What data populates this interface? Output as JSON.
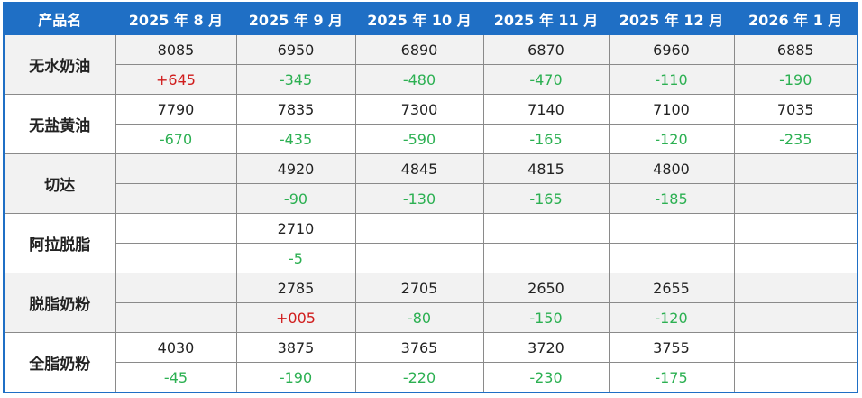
{
  "header": [
    "产品名",
    "2025 年 8 月",
    "2025 年 9 月",
    "2025 年 10 月",
    "2025 年 11 月",
    "2025 年 12 月",
    "2026 年 1 月"
  ],
  "rows": [
    {
      "name": "无水奶油",
      "prices": [
        "8085",
        "6950",
        "6890",
        "6870",
        "6960",
        "6885"
      ],
      "changes": [
        "+645",
        "-345",
        "-480",
        "-470",
        "-110",
        "-190"
      ]
    },
    {
      "name": "无盐黄油",
      "prices": [
        "7790",
        "7835",
        "7300",
        "7140",
        "7100",
        "7035"
      ],
      "changes": [
        "-670",
        "-435",
        "-590",
        "-165",
        "-120",
        "-235"
      ]
    },
    {
      "name": "切达",
      "prices": [
        null,
        "4920",
        "4845",
        "4815",
        "4800",
        null
      ],
      "changes": [
        null,
        "-90",
        "-130",
        "-165",
        "-185",
        null
      ]
    },
    {
      "name": "阿拉脱脂",
      "prices": [
        null,
        "2710",
        null,
        null,
        null,
        null
      ],
      "changes": [
        null,
        "-5",
        null,
        null,
        null,
        null
      ]
    },
    {
      "name": "脱脂奶粉",
      "prices": [
        null,
        "2785",
        "2705",
        "2650",
        "2655",
        null
      ],
      "changes": [
        null,
        "+005",
        "-80",
        "-150",
        "-120",
        null
      ]
    },
    {
      "name": "全脂奶粉",
      "prices": [
        "4030",
        "3875",
        "3765",
        "3720",
        "3755",
        null
      ],
      "changes": [
        "-45",
        "-190",
        "-220",
        "-230",
        "-175",
        null
      ]
    }
  ]
}
